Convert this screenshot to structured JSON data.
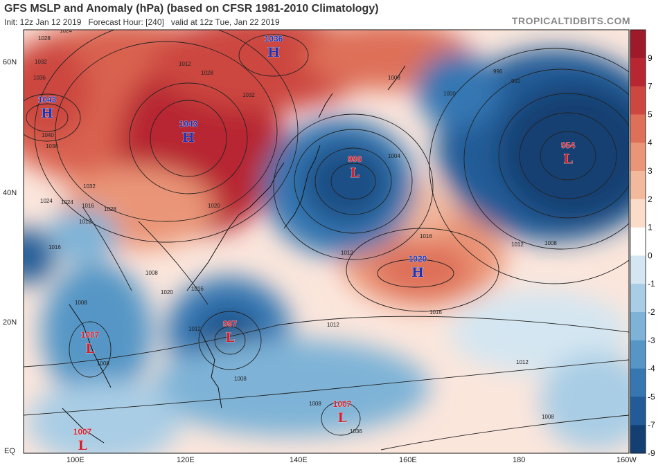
{
  "title": "GFS MSLP and Anomaly (hPa) (based on CFSR 1981-2010 Climatology)",
  "subtitle": {
    "init": "Init: 12z Jan 12 2019",
    "forecast": "Forecast Hour: [240]",
    "valid": "valid at 12z Tue, Jan 22 2019"
  },
  "credit": "TROPICALTIDBITS.COM",
  "lat_labels": [
    "60N",
    "40N",
    "20N",
    "EQ"
  ],
  "lon_labels": [
    "100E",
    "120E",
    "140E",
    "160E",
    "180",
    "160W"
  ],
  "colorbar": {
    "labels": [
      "9",
      "7",
      "5",
      "4",
      "3",
      "2",
      "1",
      "0",
      "-1",
      "-2",
      "-3",
      "-4",
      "-5",
      "-7",
      "-9"
    ],
    "colors": [
      "#9e1a2b",
      "#b72631",
      "#cc4740",
      "#de6f58",
      "#ea9577",
      "#f3b99d",
      "#fadcc9",
      "#ffffff",
      "#d4e6f1",
      "#a9cde5",
      "#7eb3d7",
      "#5596c6",
      "#3677b2",
      "#225b97",
      "#143f72"
    ]
  },
  "centers": [
    {
      "type": "H",
      "value": "1043",
      "color": "#1a34b8"
    },
    {
      "type": "H",
      "value": "1043",
      "color": "#1a34b8"
    },
    {
      "type": "H",
      "value": "1036",
      "color": "#1a34b8"
    },
    {
      "type": "L",
      "value": "996",
      "color": "#d02030"
    },
    {
      "type": "H",
      "value": "1020",
      "color": "#1a34b8"
    },
    {
      "type": "L",
      "value": "954",
      "color": "#d02030"
    },
    {
      "type": "L",
      "value": "997",
      "color": "#d02030"
    },
    {
      "type": "L",
      "value": "1007",
      "color": "#d02030"
    },
    {
      "type": "L",
      "value": "1007",
      "color": "#d02030"
    },
    {
      "type": "L",
      "value": "1007",
      "color": "#d02030"
    }
  ],
  "isobar_labels": [
    "1024",
    "1028",
    "1032",
    "1036",
    "1040",
    "1036",
    "1032",
    "1028",
    "1024",
    "1016",
    "1012",
    "1008",
    "1008",
    "1004",
    "1000",
    "996",
    "992",
    "1012",
    "1016",
    "1016",
    "1012",
    "1012",
    "1008",
    "1008",
    "1008",
    "1012",
    "1008",
    "1008",
    "1020",
    "1016",
    "1012",
    "1016",
    "1012",
    "1028",
    "1032",
    "1036",
    "1008",
    "1024",
    "1020",
    "1016"
  ]
}
